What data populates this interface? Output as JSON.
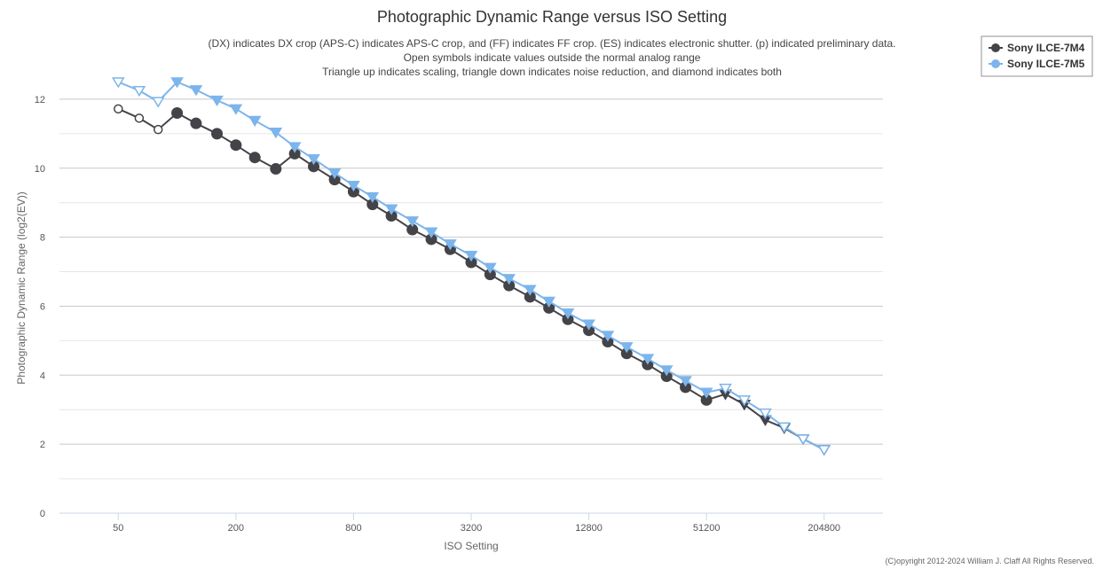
{
  "chart_data": {
    "type": "line",
    "title": "Photographic Dynamic Range versus ISO Setting",
    "subtitle": [
      "(DX) indicates DX crop (APS-C) indicates APS-C crop, and (FF) indicates FF crop. (ES) indicates electronic shutter. (p) indicated preliminary data.",
      "Open symbols indicate values outside the normal analog range",
      "Triangle up indicates scaling, triangle down indicates noise reduction, and diamond indicates both"
    ],
    "xlabel": "ISO Setting",
    "ylabel": "Photographic Dynamic Range (log2(EV))",
    "x_scale": "log2",
    "x_ticks": [
      50,
      200,
      800,
      3200,
      12800,
      51200,
      204800
    ],
    "x_tick_labels": [
      "50",
      "200",
      "800",
      "3200",
      "12800",
      "51200",
      "204800"
    ],
    "xlim": [
      25,
      409600
    ],
    "ylim": [
      0,
      13
    ],
    "y_ticks": [
      0,
      2,
      4,
      6,
      8,
      10,
      12
    ],
    "y_tick_labels": [
      "0",
      "2",
      "4",
      "6",
      "8",
      "10",
      "12"
    ],
    "grid": true,
    "legend_position": "top-right",
    "credit": "(C)opyright 2012-2024 William J. Claff All Rights Reserved.",
    "series": [
      {
        "name": "Sony ILCE-7M4",
        "color": "#434348",
        "points": [
          {
            "iso": 50,
            "dr": 11.72,
            "marker": "open-circle"
          },
          {
            "iso": 64,
            "dr": 11.45,
            "marker": "open-circle"
          },
          {
            "iso": 80,
            "dr": 11.12,
            "marker": "open-circle"
          },
          {
            "iso": 100,
            "dr": 11.6,
            "marker": "circle"
          },
          {
            "iso": 125,
            "dr": 11.3,
            "marker": "circle"
          },
          {
            "iso": 160,
            "dr": 11.0,
            "marker": "circle"
          },
          {
            "iso": 200,
            "dr": 10.67,
            "marker": "circle"
          },
          {
            "iso": 250,
            "dr": 10.31,
            "marker": "circle"
          },
          {
            "iso": 320,
            "dr": 9.98,
            "marker": "circle"
          },
          {
            "iso": 400,
            "dr": 10.42,
            "marker": "circle"
          },
          {
            "iso": 500,
            "dr": 10.05,
            "marker": "circle"
          },
          {
            "iso": 640,
            "dr": 9.67,
            "marker": "circle"
          },
          {
            "iso": 800,
            "dr": 9.32,
            "marker": "circle"
          },
          {
            "iso": 1000,
            "dr": 8.95,
            "marker": "circle"
          },
          {
            "iso": 1250,
            "dr": 8.62,
            "marker": "circle"
          },
          {
            "iso": 1600,
            "dr": 8.22,
            "marker": "circle"
          },
          {
            "iso": 2000,
            "dr": 7.94,
            "marker": "circle"
          },
          {
            "iso": 2500,
            "dr": 7.65,
            "marker": "circle"
          },
          {
            "iso": 3200,
            "dr": 7.27,
            "marker": "circle"
          },
          {
            "iso": 4000,
            "dr": 6.92,
            "marker": "circle"
          },
          {
            "iso": 5000,
            "dr": 6.6,
            "marker": "circle"
          },
          {
            "iso": 6400,
            "dr": 6.27,
            "marker": "circle"
          },
          {
            "iso": 8000,
            "dr": 5.95,
            "marker": "circle"
          },
          {
            "iso": 10000,
            "dr": 5.62,
            "marker": "circle"
          },
          {
            "iso": 12800,
            "dr": 5.3,
            "marker": "circle"
          },
          {
            "iso": 16000,
            "dr": 4.97,
            "marker": "circle"
          },
          {
            "iso": 20000,
            "dr": 4.63,
            "marker": "circle"
          },
          {
            "iso": 25600,
            "dr": 4.31,
            "marker": "circle"
          },
          {
            "iso": 32000,
            "dr": 3.97,
            "marker": "circle"
          },
          {
            "iso": 40000,
            "dr": 3.65,
            "marker": "circle"
          },
          {
            "iso": 51200,
            "dr": 3.28,
            "marker": "circle"
          },
          {
            "iso": 64000,
            "dr": 3.45,
            "marker": "triangle-down"
          },
          {
            "iso": 80000,
            "dr": 3.15,
            "marker": "triangle-down"
          },
          {
            "iso": 102400,
            "dr": 2.7,
            "marker": "triangle-down"
          },
          {
            "iso": 128000,
            "dr": 2.47,
            "marker": "triangle-down"
          },
          {
            "iso": 160000,
            "dr": 2.15,
            "marker": "triangle-down"
          },
          {
            "iso": 204800,
            "dr": 1.84,
            "marker": "triangle-down"
          }
        ]
      },
      {
        "name": "Sony ILCE-7M5",
        "color": "#7cb5ec",
        "points": [
          {
            "iso": 50,
            "dr": 12.5,
            "marker": "open-triangle-down"
          },
          {
            "iso": 64,
            "dr": 12.25,
            "marker": "open-triangle-down"
          },
          {
            "iso": 80,
            "dr": 11.93,
            "marker": "open-triangle-down"
          },
          {
            "iso": 100,
            "dr": 12.5,
            "marker": "triangle-down"
          },
          {
            "iso": 125,
            "dr": 12.27,
            "marker": "triangle-down"
          },
          {
            "iso": 160,
            "dr": 11.97,
            "marker": "triangle-down"
          },
          {
            "iso": 200,
            "dr": 11.72,
            "marker": "triangle-down"
          },
          {
            "iso": 250,
            "dr": 11.38,
            "marker": "triangle-down"
          },
          {
            "iso": 320,
            "dr": 11.04,
            "marker": "triangle-down"
          },
          {
            "iso": 400,
            "dr": 10.62,
            "marker": "triangle-down"
          },
          {
            "iso": 500,
            "dr": 10.27,
            "marker": "triangle-down"
          },
          {
            "iso": 640,
            "dr": 9.86,
            "marker": "triangle-down"
          },
          {
            "iso": 800,
            "dr": 9.5,
            "marker": "triangle-down"
          },
          {
            "iso": 1000,
            "dr": 9.17,
            "marker": "triangle-down"
          },
          {
            "iso": 1250,
            "dr": 8.82,
            "marker": "triangle-down"
          },
          {
            "iso": 1600,
            "dr": 8.47,
            "marker": "triangle-down"
          },
          {
            "iso": 2000,
            "dr": 8.15,
            "marker": "triangle-down"
          },
          {
            "iso": 2500,
            "dr": 7.8,
            "marker": "triangle-down"
          },
          {
            "iso": 3200,
            "dr": 7.47,
            "marker": "triangle-down"
          },
          {
            "iso": 4000,
            "dr": 7.12,
            "marker": "triangle-down"
          },
          {
            "iso": 5000,
            "dr": 6.8,
            "marker": "triangle-down"
          },
          {
            "iso": 6400,
            "dr": 6.48,
            "marker": "triangle-down"
          },
          {
            "iso": 8000,
            "dr": 6.14,
            "marker": "triangle-down"
          },
          {
            "iso": 10000,
            "dr": 5.8,
            "marker": "triangle-down"
          },
          {
            "iso": 12800,
            "dr": 5.48,
            "marker": "triangle-down"
          },
          {
            "iso": 16000,
            "dr": 5.15,
            "marker": "triangle-down"
          },
          {
            "iso": 20000,
            "dr": 4.82,
            "marker": "triangle-down"
          },
          {
            "iso": 25600,
            "dr": 4.48,
            "marker": "triangle-down"
          },
          {
            "iso": 32000,
            "dr": 4.15,
            "marker": "triangle-down"
          },
          {
            "iso": 40000,
            "dr": 3.84,
            "marker": "triangle-down"
          },
          {
            "iso": 51200,
            "dr": 3.5,
            "marker": "triangle-down"
          },
          {
            "iso": 64000,
            "dr": 3.62,
            "marker": "open-triangle-down"
          },
          {
            "iso": 80000,
            "dr": 3.28,
            "marker": "open-triangle-down"
          },
          {
            "iso": 102400,
            "dr": 2.9,
            "marker": "open-triangle-down"
          },
          {
            "iso": 128000,
            "dr": 2.5,
            "marker": "open-triangle-down"
          },
          {
            "iso": 160000,
            "dr": 2.15,
            "marker": "open-triangle-down"
          },
          {
            "iso": 204800,
            "dr": 1.84,
            "marker": "open-triangle-down"
          }
        ]
      }
    ]
  }
}
